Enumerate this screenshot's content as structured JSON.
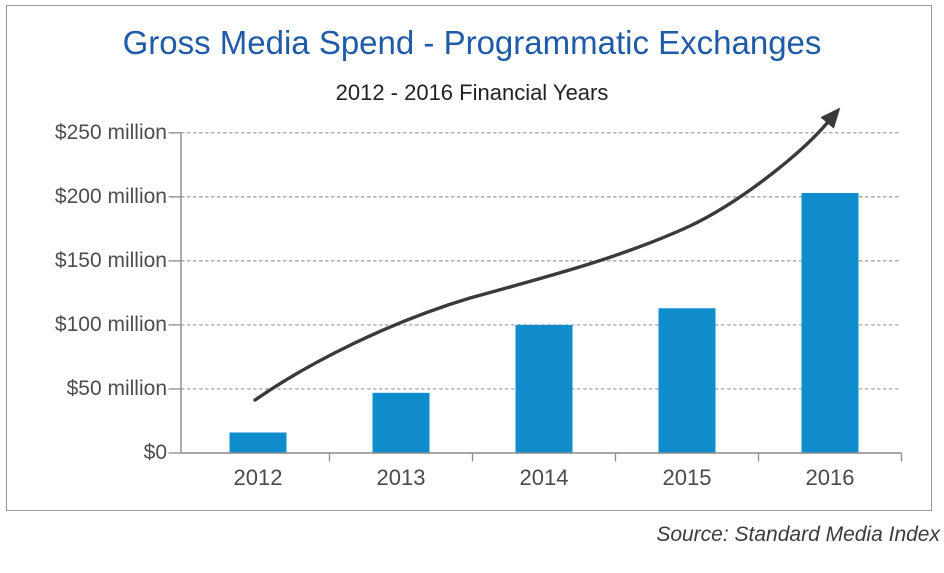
{
  "chart_data": {
    "type": "bar",
    "title": "Gross Media Spend - Programmatic Exchanges",
    "subtitle": "2012 - 2016 Financial Years",
    "categories": [
      "2012",
      "2013",
      "2014",
      "2015",
      "2016"
    ],
    "values": [
      16,
      47,
      100,
      113,
      203
    ],
    "unit": "USD million",
    "xlabel": "",
    "ylabel": "",
    "ylim": [
      0,
      250
    ],
    "ytick_values": [
      0,
      50,
      100,
      150,
      200,
      250
    ],
    "ytick_labels": [
      "$0",
      "$50 million",
      "$100 million",
      "$150 million",
      "$200 million",
      "$250 million"
    ],
    "grid": "horizontal-dashed",
    "legend": "none",
    "trend_arrow": true,
    "colors": {
      "bar": "#0e8ccb",
      "title": "#1f5ba7",
      "subtitle": "#222222",
      "axis_text": "#4d4d4d",
      "gridline": "#9a9a9a",
      "axis_line": "#8a8a8a",
      "arrow": "#3a3a3a",
      "frame_border": "#989898",
      "source_text": "#3c3c3c"
    }
  },
  "source_note": "Source: Standard Media Index"
}
